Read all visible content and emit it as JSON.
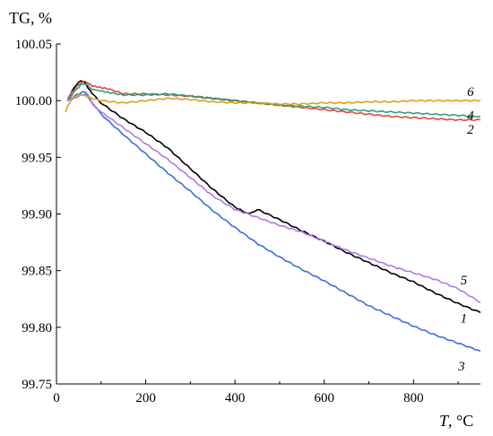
{
  "chart_data": {
    "type": "line",
    "ylabel": "TG, %",
    "xlabel_var": "T",
    "xlabel_unit": ", °C",
    "xlim": [
      0,
      950
    ],
    "ylim": [
      99.75,
      100.05
    ],
    "x_ticks": [
      0,
      200,
      400,
      600,
      800
    ],
    "x_tick_labels": [
      "0",
      "200",
      "400",
      "600",
      "800"
    ],
    "y_ticks": [
      99.75,
      99.8,
      99.85,
      99.9,
      99.95,
      100.0,
      100.05
    ],
    "y_tick_labels": [
      "99.75",
      "99.80",
      "99.85",
      "99.90",
      "99.95",
      "100.00",
      "100.05"
    ],
    "series": [
      {
        "name": "1",
        "color": "#000000",
        "label_pos": [
          905,
          99.808
        ],
        "x": [
          25,
          40,
          55,
          65,
          80,
          100,
          150,
          200,
          250,
          300,
          350,
          400,
          430,
          450,
          500,
          550,
          600,
          650,
          700,
          750,
          800,
          850,
          900,
          950
        ],
        "y": [
          100.0,
          100.012,
          100.018,
          100.015,
          100.006,
          99.998,
          99.984,
          99.972,
          99.958,
          99.94,
          99.922,
          99.906,
          99.9,
          99.904,
          99.895,
          99.885,
          99.876,
          99.866,
          99.857,
          99.848,
          99.84,
          99.83,
          99.821,
          99.813
        ]
      },
      {
        "name": "2",
        "color": "#e8473b",
        "label_pos": [
          920,
          99.975
        ],
        "x": [
          25,
          40,
          55,
          65,
          80,
          120,
          150,
          200,
          250,
          300,
          350,
          400,
          450,
          500,
          550,
          600,
          650,
          700,
          750,
          800,
          850,
          900,
          950
        ],
        "y": [
          100.002,
          100.01,
          100.016,
          100.017,
          100.013,
          100.01,
          100.006,
          100.006,
          100.005,
          100.004,
          100.002,
          100.0,
          99.998,
          99.996,
          99.994,
          99.992,
          99.99,
          99.988,
          99.986,
          99.985,
          99.984,
          99.983,
          99.983
        ]
      },
      {
        "name": "3",
        "color": "#3a6fd9",
        "label_pos": [
          900,
          99.766
        ],
        "x": [
          25,
          40,
          55,
          65,
          80,
          100,
          150,
          200,
          250,
          300,
          350,
          400,
          450,
          500,
          550,
          600,
          650,
          700,
          750,
          800,
          850,
          900,
          950
        ],
        "y": [
          100.0,
          100.004,
          100.007,
          100.008,
          99.998,
          99.988,
          99.97,
          99.953,
          99.936,
          99.92,
          99.903,
          99.888,
          99.874,
          99.862,
          99.851,
          99.841,
          99.83,
          99.819,
          99.81,
          99.801,
          99.793,
          99.786,
          99.779
        ]
      },
      {
        "name": "4",
        "color": "#2ea07e",
        "label_pos": [
          920,
          99.987
        ],
        "x": [
          25,
          40,
          55,
          65,
          80,
          120,
          150,
          200,
          250,
          300,
          350,
          400,
          450,
          500,
          550,
          600,
          650,
          700,
          750,
          800,
          850,
          900,
          950
        ],
        "y": [
          100.0,
          100.008,
          100.014,
          100.015,
          100.01,
          100.007,
          100.005,
          100.005,
          100.006,
          100.004,
          100.002,
          100.0,
          99.998,
          99.996,
          99.995,
          99.994,
          99.992,
          99.991,
          99.99,
          99.989,
          99.988,
          99.987,
          99.986
        ]
      },
      {
        "name": "5",
        "color": "#b07be0",
        "label_pos": [
          905,
          99.842
        ],
        "x": [
          25,
          40,
          55,
          65,
          80,
          100,
          150,
          200,
          250,
          300,
          350,
          400,
          450,
          500,
          550,
          600,
          650,
          700,
          750,
          800,
          850,
          900,
          950
        ],
        "y": [
          100.0,
          100.002,
          100.005,
          100.006,
          99.998,
          99.99,
          99.976,
          99.962,
          99.948,
          99.932,
          99.916,
          99.904,
          99.897,
          99.89,
          99.884,
          99.876,
          99.868,
          99.861,
          99.854,
          99.848,
          99.842,
          99.834,
          99.822
        ]
      },
      {
        "name": "6",
        "color": "#d9a21c",
        "label_pos": [
          920,
          100.008
        ],
        "x": [
          20,
          25,
          35,
          50,
          60,
          70,
          100,
          150,
          200,
          250,
          300,
          350,
          400,
          450,
          500,
          550,
          600,
          650,
          700,
          750,
          800,
          850,
          900,
          950
        ],
        "y": [
          99.99,
          99.995,
          100.002,
          100.005,
          100.005,
          100.003,
          100.0,
          99.998,
          100.0,
          100.002,
          100.001,
          99.999,
          99.998,
          99.998,
          99.997,
          99.997,
          99.998,
          99.998,
          99.999,
          99.999,
          100.0,
          100.0,
          100.0,
          100.0
        ]
      }
    ]
  }
}
